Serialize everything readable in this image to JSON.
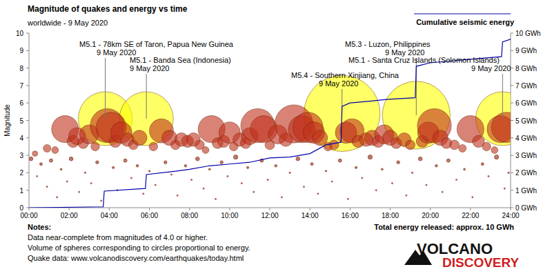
{
  "chart_data": {
    "type": "scatter",
    "title": "Magnitude of quakes and energy vs time",
    "subtitle": "worldwide -  9 May 2020",
    "y_label": "Magnitude",
    "legend": "top-right",
    "xlim": [
      0,
      24
    ],
    "xticks": [
      {
        "value": 0,
        "label": "00:00"
      },
      {
        "value": 2,
        "label": "02:00"
      },
      {
        "value": 4,
        "label": "04:00"
      },
      {
        "value": 6,
        "label": "06:00"
      },
      {
        "value": 8,
        "label": "08:00"
      },
      {
        "value": 10,
        "label": "10:00"
      },
      {
        "value": 12,
        "label": "12:00"
      },
      {
        "value": 14,
        "label": "14:00"
      },
      {
        "value": 16,
        "label": "16:00"
      },
      {
        "value": 18,
        "label": "18:00"
      },
      {
        "value": 20,
        "label": "20:00"
      },
      {
        "value": 22,
        "label": "22:00"
      },
      {
        "value": 24,
        "label": "24:00"
      }
    ],
    "ylim": [
      0,
      10
    ],
    "yticks": [
      0,
      1,
      2,
      3,
      4,
      5,
      6,
      7,
      8,
      9,
      10
    ],
    "y2lim": [
      0,
      10
    ],
    "y2ticks": [
      {
        "value": 0,
        "label": "0 GWh"
      },
      {
        "value": 1,
        "label": "1 GWh"
      },
      {
        "value": 2,
        "label": "2 GWh"
      },
      {
        "value": 3,
        "label": "3 GWh"
      },
      {
        "value": 4,
        "label": "4 GWh"
      },
      {
        "value": 5,
        "label": "5 GWh"
      },
      {
        "value": 6,
        "label": "6 GWh"
      },
      {
        "value": 7,
        "label": "7 GWh"
      },
      {
        "value": 8,
        "label": "8 GWh"
      },
      {
        "value": 9,
        "label": "9 GWh"
      },
      {
        "value": 10,
        "label": "10 GWh"
      }
    ],
    "series": [
      {
        "type": "scatter",
        "color": "#ffff00",
        "x": [
          3.8,
          5.85,
          15.6,
          19.3,
          23.6
        ],
        "values": [
          5.1,
          5.1,
          5.4,
          5.3,
          5.1
        ]
      },
      {
        "type": "scatter",
        "color": "#c0301c",
        "x": [
          0.3,
          0.9,
          1.3,
          1.8,
          2.2,
          2.4,
          2.7,
          3.0,
          3.3,
          3.9,
          4.1,
          4.3,
          4.6,
          4.9,
          5.2,
          5.5,
          6.2,
          6.6,
          7.0,
          7.3,
          7.6,
          7.9,
          8.2,
          8.5,
          8.8,
          9.1,
          9.4,
          9.7,
          10.0,
          10.2,
          10.5,
          10.8,
          11.0,
          11.4,
          11.7,
          12.0,
          12.4,
          12.8,
          13.2,
          13.6,
          13.9,
          14.2,
          14.5,
          14.9,
          15.2,
          15.8,
          16.1,
          16.4,
          16.8,
          17.1,
          17.4,
          17.7,
          18.0,
          18.3,
          18.7,
          19.0,
          19.6,
          19.9,
          20.2,
          20.5,
          20.8,
          21.2,
          21.6,
          22.0,
          22.4,
          22.8,
          23.2,
          23.5,
          23.8
        ],
        "values": [
          3.1,
          3.4,
          3.3,
          4.5,
          3.8,
          4.1,
          3.7,
          4.2,
          3.5,
          4.7,
          4.6,
          3.8,
          4.3,
          3.9,
          3.6,
          4.0,
          3.5,
          4.4,
          4.0,
          3.6,
          3.9,
          3.8,
          3.9,
          3.6,
          3.3,
          4.5,
          3.7,
          3.8,
          4.3,
          3.5,
          3.9,
          3.7,
          4.1,
          4.7,
          4.5,
          3.6,
          4.2,
          3.9,
          4.8,
          4.5,
          4.6,
          4.3,
          4.0,
          3.5,
          3.6,
          4.3,
          4.4,
          3.8,
          3.9,
          4.0,
          3.8,
          4.2,
          4.0,
          3.7,
          3.9,
          3.6,
          3.8,
          4.3,
          4.7,
          4.0,
          3.7,
          3.6,
          3.4,
          4.5,
          3.8,
          3.5,
          3.3,
          4.5,
          4.6
        ]
      },
      {
        "type": "scatter",
        "color": "#a0523c",
        "x": [
          0.1,
          0.4,
          0.6,
          0.9,
          1.1,
          1.4,
          1.6,
          1.9,
          2.1,
          2.5,
          2.8,
          3.1,
          3.4,
          3.6,
          4.2,
          4.4,
          4.8,
          5.1,
          5.4,
          5.7,
          6.0,
          6.3,
          6.8,
          7.1,
          7.4,
          7.8,
          8.1,
          8.4,
          8.7,
          9.0,
          9.3,
          9.6,
          9.9,
          10.3,
          10.6,
          10.9,
          11.2,
          11.6,
          11.9,
          12.3,
          12.6,
          13.0,
          13.4,
          13.7,
          14.1,
          14.4,
          14.8,
          15.1,
          15.5,
          15.9,
          16.3,
          16.6,
          17.0,
          17.3,
          17.6,
          18.1,
          18.4,
          18.8,
          19.1,
          19.5,
          19.8,
          20.3,
          20.6,
          20.9,
          21.3,
          21.7,
          22.1,
          22.6,
          22.9,
          23.3,
          23.7,
          23.9
        ],
        "values": [
          2.8,
          1.8,
          2.5,
          1.2,
          2.7,
          0.6,
          2.2,
          1.5,
          2.8,
          0.9,
          2.0,
          1.4,
          2.6,
          0.4,
          2.3,
          1.0,
          2.7,
          1.7,
          2.4,
          0.8,
          2.1,
          1.3,
          2.6,
          1.9,
          0.7,
          2.4,
          1.6,
          2.8,
          1.1,
          2.2,
          0.5,
          2.6,
          1.8,
          2.9,
          1.4,
          2.3,
          0.9,
          2.7,
          1.6,
          2.4,
          0.6,
          2.0,
          2.8,
          1.2,
          2.5,
          0.8,
          2.1,
          1.5,
          2.7,
          0.5,
          2.3,
          1.7,
          2.9,
          1.0,
          2.2,
          1.4,
          2.6,
          0.7,
          2.0,
          2.8,
          1.3,
          2.4,
          0.9,
          2.7,
          1.6,
          2.2,
          0.6,
          2.5,
          1.8,
          2.9,
          1.1,
          2.0
        ]
      },
      {
        "type": "line",
        "axis": "y2",
        "name": "Cumulative seismic energy",
        "color": "#0000aa",
        "x": [
          0,
          3.7,
          3.75,
          5.8,
          5.85,
          7,
          8,
          9,
          10,
          11,
          12,
          13,
          14,
          14.8,
          15.55,
          15.6,
          16,
          17,
          17.8,
          19.25,
          19.3,
          20,
          21,
          22,
          23,
          23.55,
          23.6,
          24
        ],
        "values": [
          0,
          0.05,
          0.95,
          1.1,
          1.9,
          2.05,
          2.2,
          2.4,
          2.5,
          2.6,
          2.85,
          2.9,
          3.1,
          3.6,
          3.75,
          5.8,
          6.0,
          6.1,
          6.2,
          6.3,
          8.1,
          8.3,
          8.4,
          8.5,
          8.6,
          8.65,
          9.5,
          9.65
        ]
      }
    ],
    "annotations": [
      {
        "label": "M5.1 - 78km SE of Taron, Papua New Guinea",
        "date": "9 May 2020",
        "x": 3.8,
        "y": 5.1
      },
      {
        "label": "M5.1 - Banda Sea (Indonesia)",
        "date": "9 May 2020",
        "x": 5.85,
        "y": 5.1
      },
      {
        "label": "M5.4 - Southern Xinjiang, China",
        "date": "9 May 2020",
        "x": 15.6,
        "y": 5.4
      },
      {
        "label": "M5.3 - Luzon, Philippines",
        "date": "9 May 2020",
        "x": 19.3,
        "y": 5.3
      },
      {
        "label": "M5.1 - Santa Cruz Islands (Solomon Islands)",
        "date": "9 May 2020",
        "x": 23.6,
        "y": 5.1
      }
    ],
    "notes": [
      "Notes:",
      "Data near-complete from magnitudes of 4.0 or higher.",
      "Volume of spheres corresponding to circles proportional to energy.",
      "Quake data: www.volcanodiscovery.com/earthquakes/today.html"
    ],
    "total_energy": "Total energy released: approx. 10 GWh",
    "logo": [
      "VOLCANO",
      "DISCOVERY"
    ]
  }
}
